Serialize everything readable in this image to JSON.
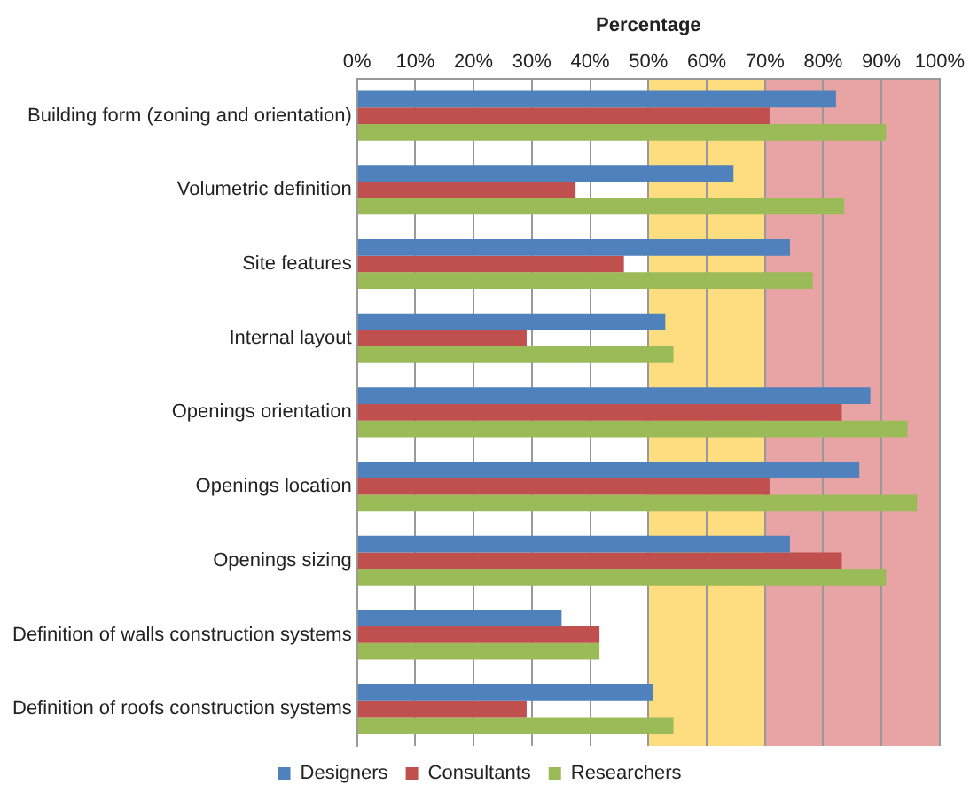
{
  "chart_data": {
    "type": "bar",
    "orientation": "horizontal",
    "xlabel": "Percentage",
    "categories": [
      "Building form (zoning and orientation)",
      "Volumetric definition",
      "Site features",
      "Internal layout",
      "Openings orientation",
      "Openings location",
      "Openings sizing",
      "Definition of walls construction systems",
      "Definition of roofs construction systems"
    ],
    "series": [
      {
        "name": "Designers",
        "color": "#4f81bd",
        "values": [
          82.2,
          64.6,
          74.3,
          52.9,
          88.1,
          86.2,
          74.3,
          35.1,
          50.8
        ]
      },
      {
        "name": "Consultants",
        "color": "#c0504d",
        "values": [
          70.8,
          37.5,
          45.8,
          29.1,
          83.2,
          70.8,
          83.2,
          41.6,
          29.1
        ]
      },
      {
        "name": "Researchers",
        "color": "#9bbb59",
        "values": [
          90.8,
          83.6,
          78.2,
          54.3,
          94.5,
          96.1,
          90.8,
          41.6,
          54.3
        ]
      }
    ],
    "xlim": [
      0,
      100
    ],
    "xticks": [
      {
        "value": 0,
        "label": "0%"
      },
      {
        "value": 10,
        "label": "10%"
      },
      {
        "value": 20,
        "label": "20%"
      },
      {
        "value": 30,
        "label": "30%"
      },
      {
        "value": 40,
        "label": "40%"
      },
      {
        "value": 50,
        "label": "50%"
      },
      {
        "value": 60,
        "label": "60%"
      },
      {
        "value": 70,
        "label": "70%"
      },
      {
        "value": 80,
        "label": "80%"
      },
      {
        "value": 90,
        "label": "90%"
      },
      {
        "value": 100,
        "label": "100%"
      }
    ],
    "bands": [
      {
        "axis": "x",
        "from": 50,
        "to": 70,
        "color": "#fddd80"
      },
      {
        "axis": "x",
        "from": 70,
        "to": 100,
        "color": "#e8a4a4"
      }
    ],
    "grid": "x",
    "legend": "bottom"
  }
}
